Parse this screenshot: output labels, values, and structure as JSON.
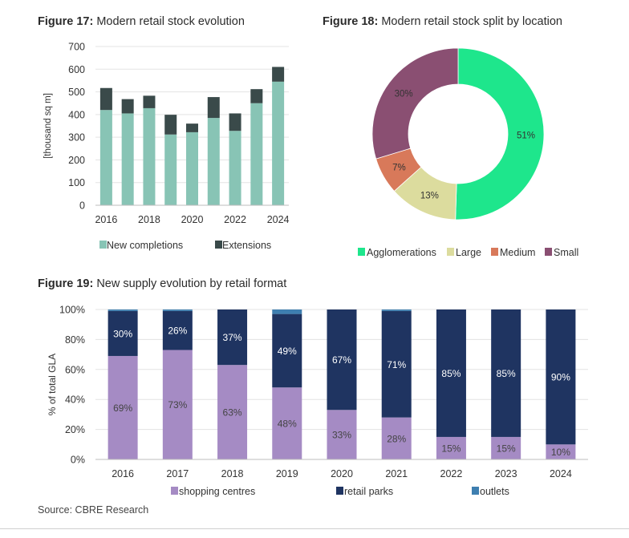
{
  "figures": [
    {
      "label": "Figure 17:",
      "caption": "Modern retail stock evolution"
    },
    {
      "label": "Figure 18:",
      "caption": "Modern retail stock split by location"
    },
    {
      "label": "Figure 19:",
      "caption": "New supply evolution by retail format"
    }
  ],
  "source": "Source: CBRE Research",
  "chart_data": [
    {
      "type": "bar",
      "stacked": true,
      "title": "Modern retail stock evolution",
      "ylabel": "[thousand sq m]",
      "ylim": [
        0,
        700
      ],
      "yticks": [
        0,
        100,
        200,
        300,
        400,
        500,
        600,
        700
      ],
      "xtick_labels": [
        "2016",
        "2018",
        "2020",
        "2022",
        "2024"
      ],
      "categories": [
        "2016",
        "2017",
        "2018",
        "2019",
        "2020",
        "2021",
        "2022",
        "2023",
        "2024"
      ],
      "series": [
        {
          "name": "New completions",
          "color": "#88c4b5",
          "values": [
            420,
            405,
            428,
            312,
            322,
            385,
            328,
            450,
            545
          ]
        },
        {
          "name": "Extensions",
          "color": "#3a4a4a",
          "values": [
            97,
            63,
            55,
            87,
            38,
            92,
            77,
            62,
            65
          ]
        }
      ],
      "legend": "bottom"
    },
    {
      "type": "pie",
      "donut": true,
      "title": "Modern retail stock split by location",
      "slices": [
        {
          "name": "Agglomerations",
          "value": 51,
          "label": "51%",
          "color": "#1ee68c"
        },
        {
          "name": "Large",
          "value": 13,
          "label": "13%",
          "color": "#dcdc9e"
        },
        {
          "name": "Medium",
          "value": 7,
          "label": "7%",
          "color": "#d8795a"
        },
        {
          "name": "Small",
          "value": 30,
          "label": "30%",
          "color": "#8a4f72"
        }
      ],
      "legend": "bottom"
    },
    {
      "type": "bar",
      "stacked": true,
      "percent": true,
      "title": "New supply evolution by retail format",
      "ylabel": "% of total GLA",
      "ylim": [
        0,
        100
      ],
      "ytick_labels": [
        "0%",
        "20%",
        "40%",
        "60%",
        "80%",
        "100%"
      ],
      "categories": [
        "2016",
        "2017",
        "2018",
        "2019",
        "2020",
        "2021",
        "2022",
        "2023",
        "2024"
      ],
      "series": [
        {
          "name": "shopping centres",
          "color": "#a58bc4",
          "values": [
            69,
            73,
            63,
            48,
            33,
            28,
            15,
            15,
            10
          ],
          "labels": [
            "69%",
            "73%",
            "63%",
            "48%",
            "33%",
            "28%",
            "15%",
            "15%",
            "10%"
          ]
        },
        {
          "name": "retail parks",
          "color": "#1f3461",
          "values": [
            30,
            26,
            37,
            49,
            67,
            71,
            85,
            85,
            90
          ],
          "labels": [
            "30%",
            "26%",
            "37%",
            "49%",
            "67%",
            "71%",
            "85%",
            "85%",
            "90%"
          ]
        },
        {
          "name": "outlets",
          "color": "#3e7fb0",
          "values": [
            1,
            1,
            0,
            3,
            0,
            1,
            0,
            0,
            0
          ]
        }
      ],
      "legend": "bottom"
    }
  ]
}
